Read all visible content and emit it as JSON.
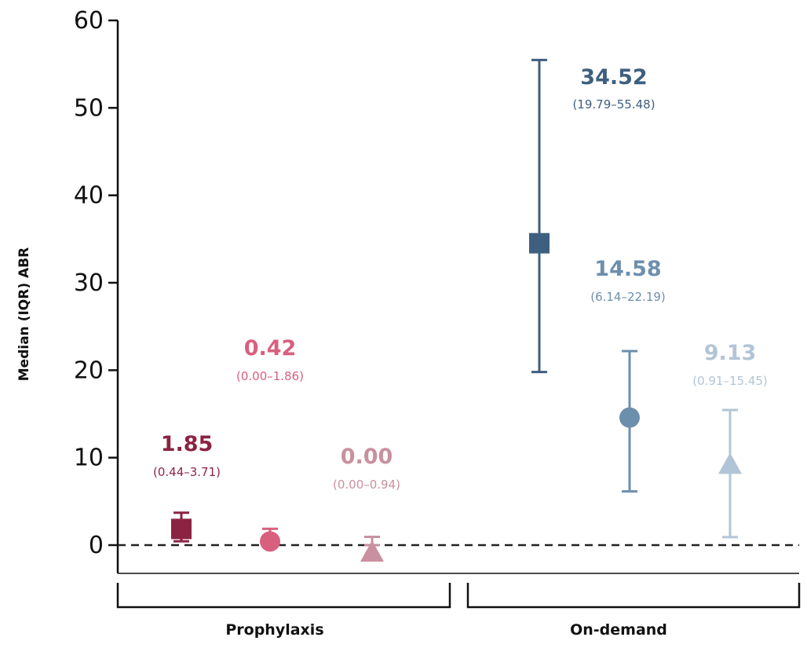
{
  "chart_data": {
    "type": "scatter",
    "ylabel": "Median (IQR) ABR",
    "ylim": [
      0,
      60
    ],
    "yticks": [
      "0",
      "10",
      "20",
      "30",
      "40",
      "50",
      "60"
    ],
    "reference_line": {
      "y": 0,
      "style": "dashed"
    },
    "groups": [
      "Prophylaxis",
      "On-demand"
    ],
    "series": [
      {
        "group": "Prophylaxis",
        "marker": "square",
        "color": "#8b2342",
        "median": 1.85,
        "q1": 0.44,
        "q3": 3.71,
        "value_label": "1.85",
        "iqr_label": "(0.44–3.71)"
      },
      {
        "group": "Prophylaxis",
        "marker": "circle",
        "color": "#d95f7f",
        "median": 0.42,
        "q1": 0.0,
        "q3": 1.86,
        "value_label": "0.42",
        "iqr_label": "(0.00–1.86)"
      },
      {
        "group": "Prophylaxis",
        "marker": "triangle",
        "color": "#c9909f",
        "median": 0.0,
        "q1": 0.0,
        "q3": 0.94,
        "value_label": "0.00",
        "iqr_label": "(0.00–0.94)"
      },
      {
        "group": "On-demand",
        "marker": "square",
        "color": "#3e5f7f",
        "median": 34.52,
        "q1": 19.79,
        "q3": 55.48,
        "value_label": "34.52",
        "iqr_label": "(19.79–55.48)"
      },
      {
        "group": "On-demand",
        "marker": "circle",
        "color": "#6d8fae",
        "median": 14.58,
        "q1": 6.14,
        "q3": 22.19,
        "value_label": "14.58",
        "iqr_label": "(6.14–22.19)"
      },
      {
        "group": "On-demand",
        "marker": "triangle",
        "color": "#b2c5d6",
        "median": 9.13,
        "q1": 0.91,
        "q3": 15.45,
        "value_label": "9.13",
        "iqr_label": "(0.91–15.45)"
      }
    ]
  }
}
